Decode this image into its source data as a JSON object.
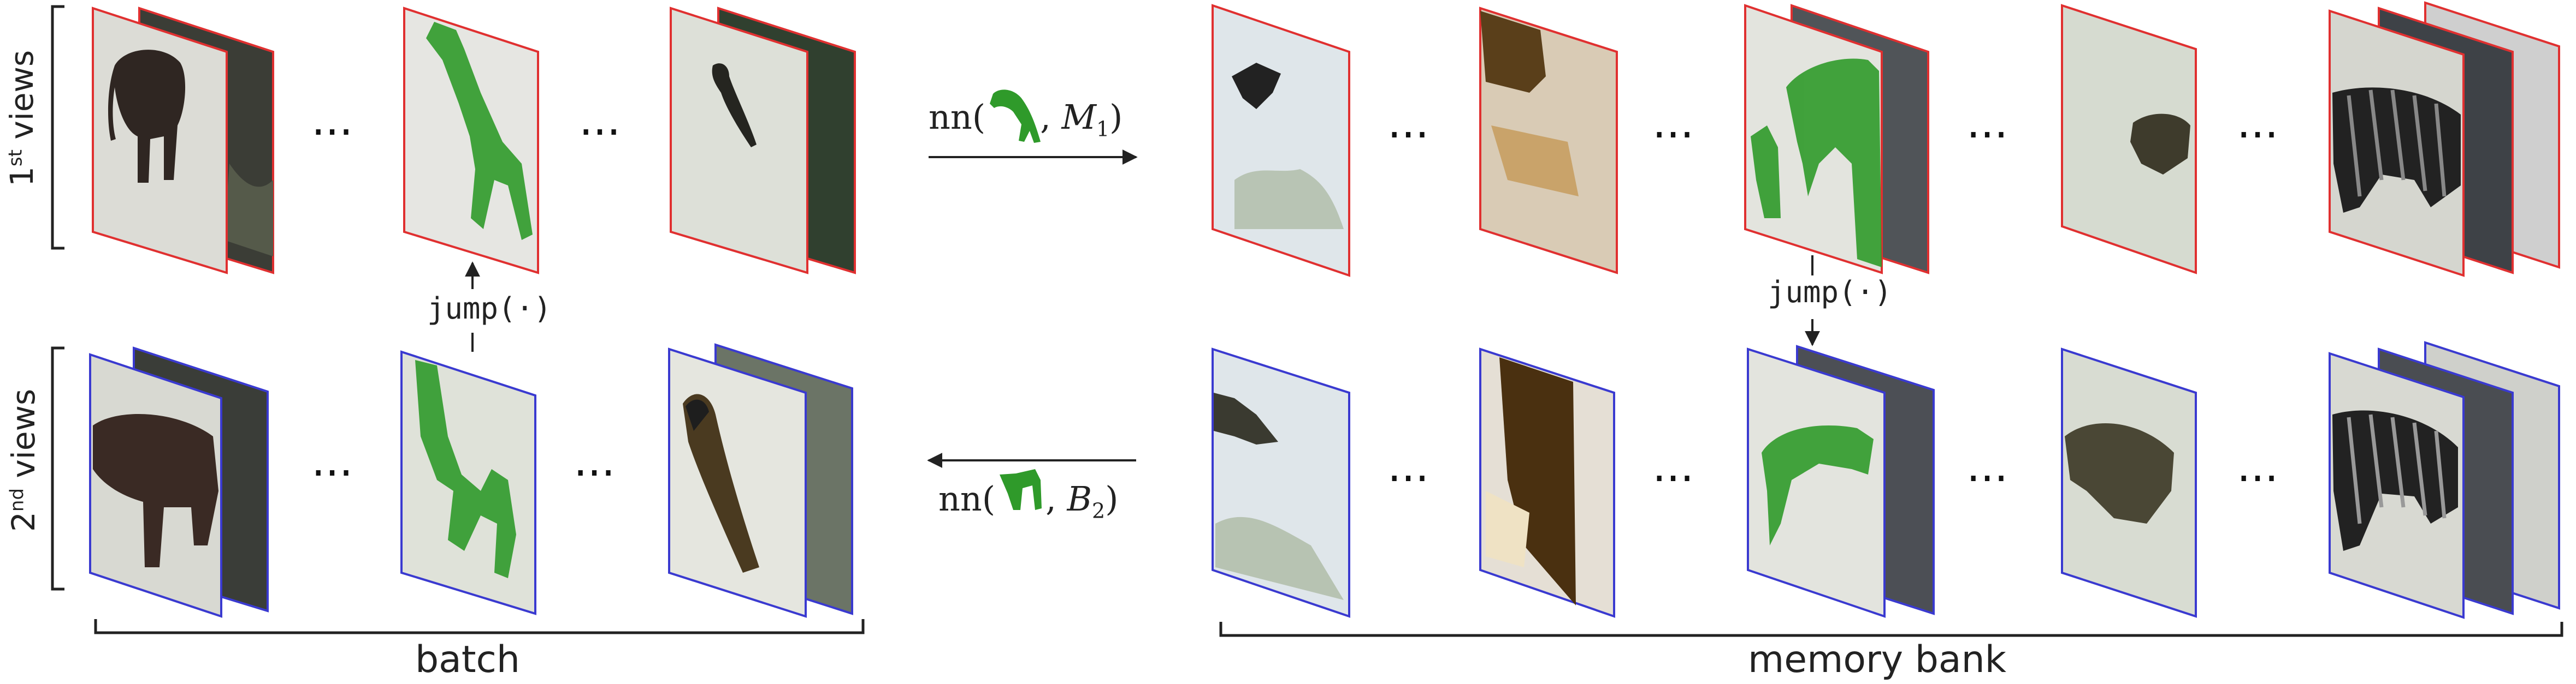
{
  "row_labels": {
    "first": {
      "ordinal": "1",
      "sup": "st",
      "word": "views"
    },
    "second": {
      "ordinal": "2",
      "sup": "nd",
      "word": "views"
    }
  },
  "brace_labels": {
    "batch": "batch",
    "memory_bank": "memory bank"
  },
  "arrows": {
    "top": {
      "fn": "nn(",
      "sep": ", ",
      "set": "M",
      "sub": "1",
      "close": ")"
    },
    "bottom": {
      "fn": "nn(",
      "sep": ", ",
      "set": "B",
      "sub": "2",
      "close": ")"
    }
  },
  "jump_label": "jump(·)",
  "ellipsis": "···",
  "colors": {
    "first_view_border": "#e03030",
    "second_view_border": "#3a3ad0",
    "giraffe_green": "#2f9a2a"
  },
  "icons": [
    "elephant-image-icon",
    "giraffe-image-icon",
    "bird-image-icon",
    "zebra-image-icon",
    "food-image-icon"
  ]
}
